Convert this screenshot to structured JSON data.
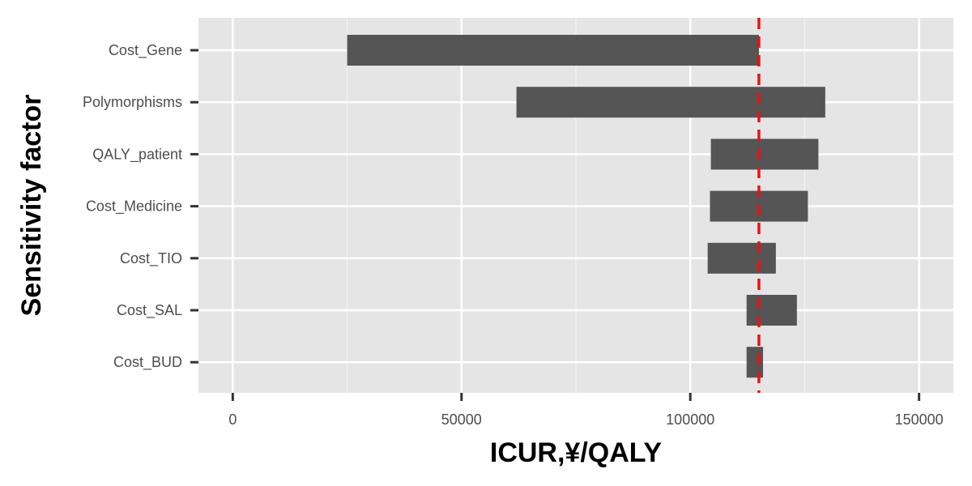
{
  "colors": {
    "panel_background": "#e5e5e5",
    "grid_major": "#ffffff",
    "grid_minor": "#f2f2f2",
    "bar_fill": "#555555",
    "reference_line": "#ee1111",
    "tick_mark": "#333333"
  },
  "chart_data": {
    "type": "bar",
    "orientation": "horizontal",
    "style": "tornado",
    "title": "",
    "xlabel": "ICUR,¥/QALY",
    "ylabel": "Sensitivity factor",
    "xlim": [
      -7500,
      157500
    ],
    "x_ticks": [
      0,
      50000,
      100000,
      150000
    ],
    "x_tick_labels": [
      "0",
      "50000",
      "100000",
      "150000"
    ],
    "x_minor_ticks": [
      25000,
      75000,
      125000
    ],
    "categories": [
      "Cost_Gene",
      "Polymorphisms",
      "QALY_patient",
      "Cost_Medicine",
      "Cost_TIO",
      "Cost_SAL",
      "Cost_BUD"
    ],
    "ranges": [
      [
        25000,
        115000
      ],
      [
        62000,
        129500
      ],
      [
        104500,
        128000
      ],
      [
        104300,
        125700
      ],
      [
        103800,
        118700
      ],
      [
        112300,
        123300
      ],
      [
        112300,
        115900
      ]
    ],
    "reference_value": 115000,
    "reference_line_style": "dashed",
    "grid": true,
    "legend": "none"
  }
}
